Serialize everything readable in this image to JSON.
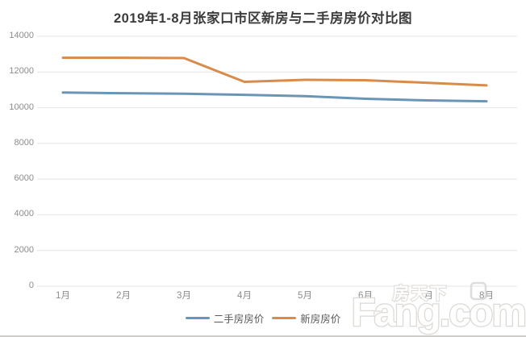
{
  "page": {
    "title": "2019年1-8月张家口市区新房与二手房房价对比图"
  },
  "watermark": {
    "text_cn": "房天下",
    "text_en": "Fang.com"
  },
  "chart_data": {
    "type": "line",
    "title": "2019年1-8月张家口市区新房与二手房房价对比图",
    "categories": [
      "1月",
      "2月",
      "3月",
      "4月",
      "5月",
      "6月",
      "7月",
      "8月"
    ],
    "series": [
      {
        "id": "secondhand",
        "name": "二手房房价",
        "color": "#6a96b5",
        "values": [
          10850,
          10810,
          10780,
          10720,
          10650,
          10500,
          10410,
          10360
        ]
      },
      {
        "id": "new",
        "name": "新房房价",
        "color": "#d98c4a",
        "values": [
          12800,
          12800,
          12780,
          11450,
          11560,
          11540,
          11400,
          11250
        ]
      }
    ],
    "xlabel": "",
    "ylabel": "",
    "ylim": [
      0,
      14000
    ],
    "y_ticks": [
      0,
      2000,
      4000,
      6000,
      8000,
      10000,
      12000,
      14000
    ],
    "grid": true,
    "grid_color": "#e4e4e4",
    "axis_text_color": "#8c8c8c",
    "legend_position": "bottom"
  }
}
